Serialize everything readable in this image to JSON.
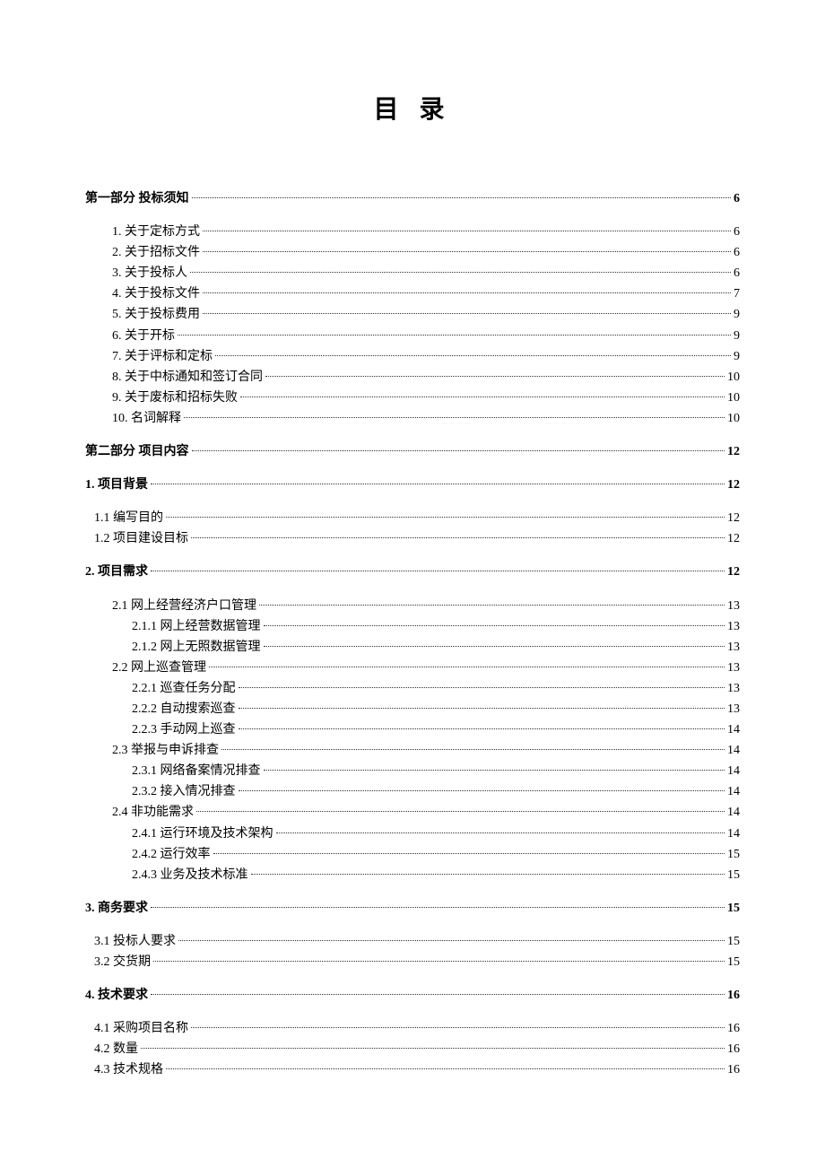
{
  "title": "目 录",
  "entries": [
    {
      "label": "第一部分   投标须知",
      "page": "6",
      "level": 0,
      "gap": ""
    },
    {
      "label": "1. 关于定标方式 ",
      "page": "6",
      "level": 1,
      "gap": "section-gap-lg"
    },
    {
      "label": "2. 关于招标文件 ",
      "page": "6",
      "level": 1,
      "gap": ""
    },
    {
      "label": "3. 关于投标人 ",
      "page": "6",
      "level": 1,
      "gap": ""
    },
    {
      "label": "4. 关于投标文件 ",
      "page": "7",
      "level": 1,
      "gap": ""
    },
    {
      "label": "5. 关于投标费用 ",
      "page": "9",
      "level": 1,
      "gap": ""
    },
    {
      "label": "6. 关于开标 ",
      "page": "9",
      "level": 1,
      "gap": ""
    },
    {
      "label": "7. 关于评标和定标 ",
      "page": "9",
      "level": 1,
      "gap": ""
    },
    {
      "label": "8. 关于中标通知和签订合同 ",
      "page": "10",
      "level": 1,
      "gap": ""
    },
    {
      "label": "9. 关于废标和招标失败 ",
      "page": "10",
      "level": 1,
      "gap": ""
    },
    {
      "label": "10. 名词解释 ",
      "page": "10",
      "level": 1,
      "gap": ""
    },
    {
      "label": "第二部分   项目内容",
      "page": "12",
      "level": 0,
      "gap": "section-gap-lg"
    },
    {
      "label": "1. 项目背景",
      "page": "12",
      "level": 0,
      "gap": "section-gap-lg"
    },
    {
      "label": "1.1 编写目的",
      "page": "12",
      "level": "1s",
      "gap": "section-gap-lg"
    },
    {
      "label": "1.2 项目建设目标",
      "page": "12",
      "level": "1s",
      "gap": ""
    },
    {
      "label": "2. 项目需求",
      "page": "12",
      "level": 0,
      "gap": "section-gap-lg"
    },
    {
      "label": "2.1 网上经营经济户口管理 ",
      "page": "13",
      "level": 2,
      "gap": "section-gap-lg"
    },
    {
      "label": "2.1.1 网上经营数据管理",
      "page": "13",
      "level": 3,
      "gap": ""
    },
    {
      "label": "2.1.2 网上无照数据管理",
      "page": "13",
      "level": 3,
      "gap": ""
    },
    {
      "label": "2.2 网上巡查管理 ",
      "page": "13",
      "level": 2,
      "gap": ""
    },
    {
      "label": "2.2.1 巡查任务分配",
      "page": "13",
      "level": 3,
      "gap": ""
    },
    {
      "label": "2.2.2 自动搜索巡查",
      "page": "13",
      "level": 3,
      "gap": ""
    },
    {
      "label": "2.2.3 手动网上巡查",
      "page": "14",
      "level": 3,
      "gap": ""
    },
    {
      "label": "2.3 举报与申诉排查 ",
      "page": "14",
      "level": 2,
      "gap": ""
    },
    {
      "label": "2.3.1 网络备案情况排查",
      "page": "14",
      "level": 3,
      "gap": ""
    },
    {
      "label": "2.3.2 接入情况排查",
      "page": "14",
      "level": 3,
      "gap": ""
    },
    {
      "label": "2.4  非功能需求 ",
      "page": "14",
      "level": 2,
      "gap": ""
    },
    {
      "label": "2.4.1  运行环境及技术架构",
      "page": "14",
      "level": 3,
      "gap": ""
    },
    {
      "label": "2.4.2  运行效率",
      "page": "15",
      "level": 3,
      "gap": ""
    },
    {
      "label": "2.4.3  业务及技术标准",
      "page": "15",
      "level": 3,
      "gap": ""
    },
    {
      "label": "3. 商务要求",
      "page": "15",
      "level": 0,
      "gap": "section-gap-lg"
    },
    {
      "label": "3.1 投标人要求 ",
      "page": "15",
      "level": "1s",
      "gap": "section-gap-lg"
    },
    {
      "label": "3.2 交货期",
      "page": "15",
      "level": "1s",
      "gap": ""
    },
    {
      "label": "4. 技术要求",
      "page": "16",
      "level": 0,
      "gap": "section-gap-lg"
    },
    {
      "label": "4.1 采购项目名称 ",
      "page": "16",
      "level": "1s",
      "gap": "section-gap-lg"
    },
    {
      "label": "4.2 数量 ",
      "page": "16",
      "level": "1s",
      "gap": ""
    },
    {
      "label": "4.3 技术规格 ",
      "page": "16",
      "level": "1s",
      "gap": ""
    }
  ]
}
